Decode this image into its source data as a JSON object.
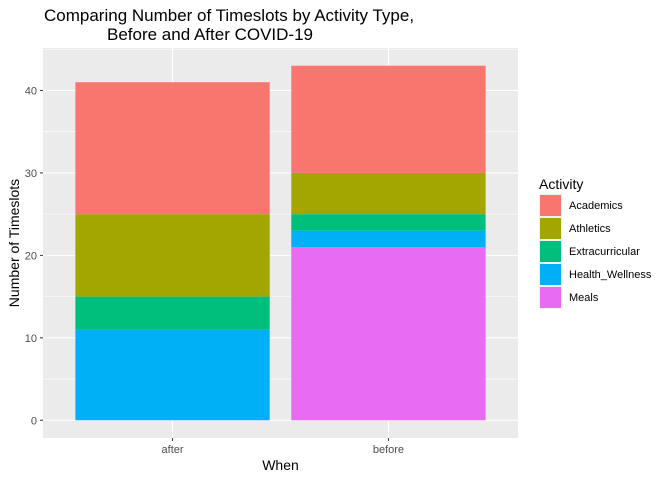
{
  "chart_data": {
    "type": "bar",
    "stacked": true,
    "title_lines": [
      "Comparing Number of Timeslots by Activity Type,",
      "Before and After COVID-19"
    ],
    "xlabel": "When",
    "ylabel": "Number of Timeslots",
    "categories": [
      "after",
      "before"
    ],
    "yticks": [
      0,
      10,
      20,
      30,
      40
    ],
    "ylim": [
      -2.15,
      45.15
    ],
    "grid": true,
    "legend": {
      "title": "Activity",
      "position": "right"
    },
    "series": [
      {
        "name": "Academics",
        "color": "#F8766D",
        "values": [
          16,
          13
        ]
      },
      {
        "name": "Athletics",
        "color": "#A3A500",
        "values": [
          10,
          5
        ]
      },
      {
        "name": "Extracurricular",
        "color": "#00BF7D",
        "values": [
          4,
          2
        ]
      },
      {
        "name": "Health_Wellness",
        "color": "#00B0F6",
        "values": [
          11,
          2
        ]
      },
      {
        "name": "Meals",
        "color": "#E76BF3",
        "values": [
          0,
          21
        ]
      }
    ]
  }
}
